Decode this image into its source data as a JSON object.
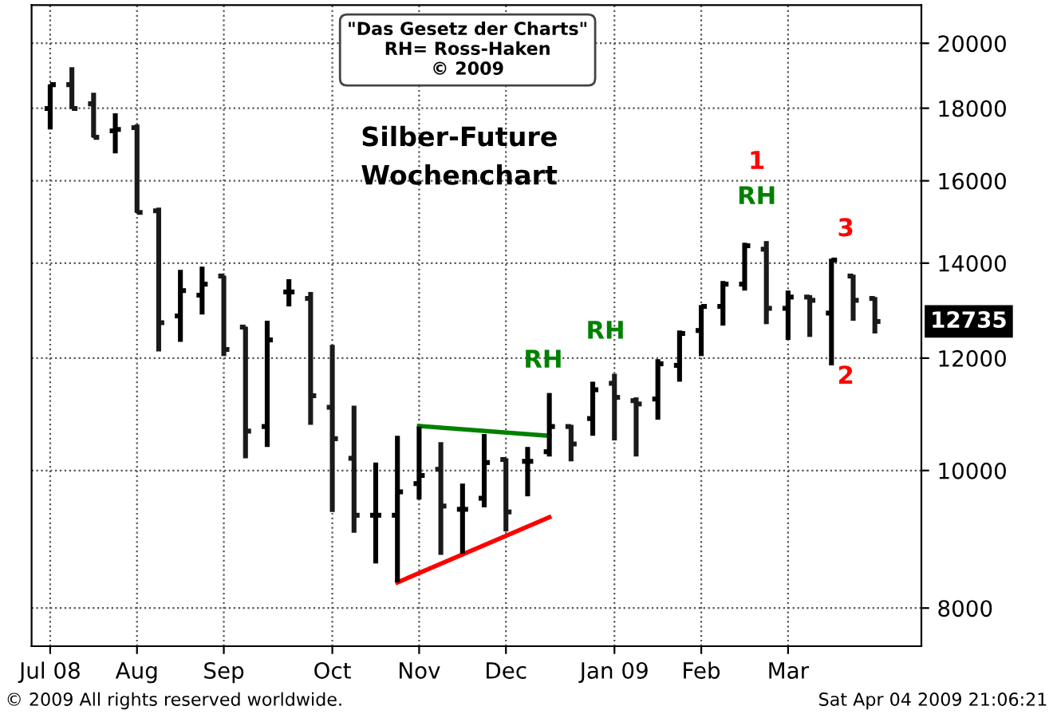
{
  "chart_data": {
    "type": "candlestick",
    "title": "Silber-Future",
    "subtitle": "Wochenchart",
    "colors": [
      "#000000",
      "#1a1a1a",
      "#1a1a1a",
      "#000000",
      "#1a1a1a",
      "#1a1a1a",
      "#000000",
      "#000000",
      "#1a1a1a",
      "#1a1a1a",
      "#000000",
      "#000000",
      "#1a1a1a",
      "#1a1a1a",
      "#1a1a1a",
      "#000000",
      "#000000",
      "#000000",
      "#1a1a1a",
      "#000000",
      "#000000",
      "#1a1a1a",
      "#000000",
      "#000000",
      "#1a1a1a",
      "#000000",
      "#1a1a1a",
      "#1a1a1a",
      "#000000",
      "#000000",
      "#000000",
      "#000000",
      "#000000",
      "#1a1a1a",
      "#000000",
      "#1a1a1a",
      "#000000",
      "#1a1a1a",
      "#1a1a1a"
    ],
    "x": [
      "2008-07-07",
      "2008-07-14",
      "2008-07-21",
      "2008-07-28",
      "2008-08-04",
      "2008-08-11",
      "2008-08-18",
      "2008-08-25",
      "2008-09-01",
      "2008-09-08",
      "2008-09-15",
      "2008-09-22",
      "2008-09-29",
      "2008-10-06",
      "2008-10-13",
      "2008-10-20",
      "2008-10-27",
      "2008-11-03",
      "2008-11-10",
      "2008-11-17",
      "2008-11-24",
      "2008-12-01",
      "2008-12-08",
      "2008-12-15",
      "2008-12-22",
      "2008-12-29",
      "2009-01-05",
      "2009-01-12",
      "2009-01-19",
      "2009-01-26",
      "2009-02-02",
      "2009-02-09",
      "2009-02-16",
      "2009-02-23",
      "2009-03-02",
      "2009-03-09",
      "2009-03-16",
      "2009-03-23",
      "2009-03-30"
    ],
    "ohlc": [
      [
        17990,
        18700,
        17390,
        18700
      ],
      [
        18700,
        19240,
        17990,
        17990
      ],
      [
        18130,
        18460,
        17170,
        17170
      ],
      [
        17350,
        17850,
        16730,
        17390
      ],
      [
        17440,
        17530,
        15200,
        15200
      ],
      [
        15240,
        15320,
        12130,
        12710
      ],
      [
        12850,
        13850,
        12320,
        13390
      ],
      [
        13290,
        13920,
        12880,
        13530
      ],
      [
        13710,
        13710,
        12040,
        12170
      ],
      [
        12620,
        12620,
        10200,
        10660
      ],
      [
        10740,
        12750,
        10390,
        12360
      ],
      [
        13360,
        13640,
        13050,
        13360
      ],
      [
        13220,
        13360,
        10770,
        11290
      ],
      [
        11080,
        12260,
        9350,
        10530
      ],
      [
        10200,
        11110,
        9040,
        9300
      ],
      [
        9300,
        10130,
        8600,
        9300
      ],
      [
        9300,
        10580,
        8340,
        9660
      ],
      [
        9790,
        10740,
        9540,
        9920
      ],
      [
        10020,
        10470,
        8720,
        9440
      ],
      [
        9390,
        9790,
        8740,
        9390
      ],
      [
        9560,
        10610,
        9420,
        10130
      ],
      [
        10180,
        10200,
        9060,
        9350
      ],
      [
        10150,
        10390,
        9590,
        10150
      ],
      [
        10310,
        11340,
        10230,
        10740
      ],
      [
        10740,
        10770,
        10150,
        10440
      ],
      [
        10880,
        11550,
        10580,
        11400
      ],
      [
        11520,
        11700,
        10500,
        11260
      ],
      [
        11200,
        11260,
        10230,
        11140
      ],
      [
        11230,
        11980,
        10860,
        11890
      ],
      [
        11860,
        12550,
        11550,
        12490
      ],
      [
        12550,
        13080,
        12040,
        13050
      ],
      [
        13050,
        13600,
        12650,
        13530
      ],
      [
        13530,
        14470,
        13390,
        14400
      ],
      [
        14320,
        14510,
        12680,
        13010
      ],
      [
        13010,
        13390,
        12360,
        13250
      ],
      [
        13250,
        13290,
        12420,
        13180
      ],
      [
        12910,
        14100,
        11860,
        14070
      ],
      [
        13710,
        13740,
        12750,
        13180
      ],
      [
        13220,
        13250,
        12490,
        12735
      ]
    ],
    "series": [
      {
        "type": "line",
        "color": "#008000",
        "x": [
          "2008-11-03",
          "2008-12-15"
        ],
        "values": [
          10750,
          10580
        ]
      },
      {
        "type": "line",
        "color": "#ff0000",
        "x": [
          "2008-10-27",
          "2008-12-15"
        ],
        "values": [
          8340,
          9270
        ]
      }
    ],
    "log": true,
    "ylim": [
      7520,
      21280
    ],
    "yticks": [
      8000,
      10000,
      12000,
      14000,
      16000,
      18000,
      20000
    ],
    "xlim": [
      "2008-07-01",
      "2009-04-14"
    ],
    "xticks": [
      {
        "value": "2008-07-07",
        "label": "Jul 08"
      },
      {
        "value": "2008-08-04",
        "label": "Aug"
      },
      {
        "value": "2008-09-01",
        "label": "Sep"
      },
      {
        "value": "2008-10-06",
        "label": "Oct"
      },
      {
        "value": "2008-11-03",
        "label": "Nov"
      },
      {
        "value": "2008-12-01",
        "label": "Dec"
      },
      {
        "value": "2009-01-05",
        "label": "Jan 09"
      },
      {
        "value": "2009-02-02",
        "label": "Feb"
      },
      {
        "value": "2009-03-02",
        "label": "Mar"
      }
    ],
    "grid": true,
    "annotations": [
      "\"Das Gesetz der Charts\"\nRH= Ross-Haken\n© 2009",
      "© 2009 All rights reserved worldwide.",
      "Sat Apr 04 2009 21:06:21",
      "RH",
      "RH",
      "RH",
      "1",
      "3",
      "2",
      "12735"
    ]
  }
}
